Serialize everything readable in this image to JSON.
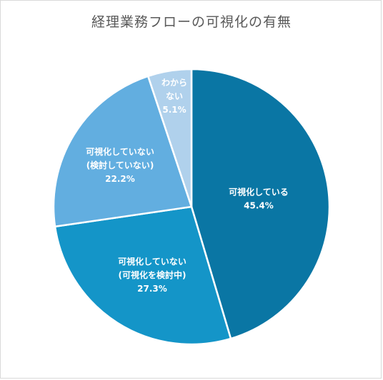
{
  "chart_data": {
    "type": "pie",
    "title": "経理業務フローの可視化の有無",
    "start_angle_deg": 0,
    "direction": "clockwise",
    "legend": "none",
    "slices": [
      {
        "label_lines": [
          "可視化している"
        ],
        "value": 45.4,
        "value_label": "45.4%",
        "color": "#0a76a4"
      },
      {
        "label_lines": [
          "可視化していない",
          "(可視化を検討中)"
        ],
        "value": 27.3,
        "value_label": "27.3%",
        "color": "#1495c8"
      },
      {
        "label_lines": [
          "可視化していない",
          "(検討していない)"
        ],
        "value": 22.2,
        "value_label": "22.2%",
        "color": "#62aee0"
      },
      {
        "label_lines": [
          "わから",
          "ない"
        ],
        "value": 5.1,
        "value_label": "5.1%",
        "color": "#b0d1ec"
      }
    ]
  }
}
